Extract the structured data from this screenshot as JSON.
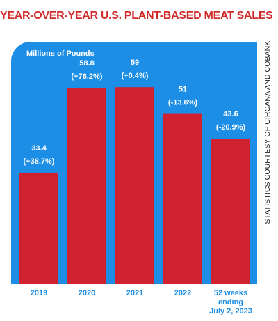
{
  "chart_data": {
    "type": "bar",
    "title": "YEAR-OVER-YEAR U.S. PLANT-BASED MEAT SALES",
    "ylabel": "Millions of Pounds",
    "source_note": "STATISTICS COURTESY OF CIRCANA AND COBANK",
    "categories": [
      [
        "2019"
      ],
      [
        "2020"
      ],
      [
        "2021"
      ],
      [
        "2022"
      ],
      [
        "52 weeks",
        "ending",
        "July 2, 2023"
      ]
    ],
    "values": [
      33.4,
      58.8,
      59,
      51,
      43.6
    ],
    "value_labels": [
      "33.4",
      "58.8",
      "59",
      "51",
      "43.6"
    ],
    "changes": [
      "(+38.7%)",
      "(+76.2%)",
      "(+0.4%)",
      "(-13.6%)",
      "(-20.9%)"
    ],
    "ylim": [
      0,
      72.6
    ],
    "grid": false,
    "colors": {
      "bar": "#cf2130",
      "panel": "#1c8ee6",
      "title": "#d22a2a",
      "label": "#ffffff"
    }
  }
}
